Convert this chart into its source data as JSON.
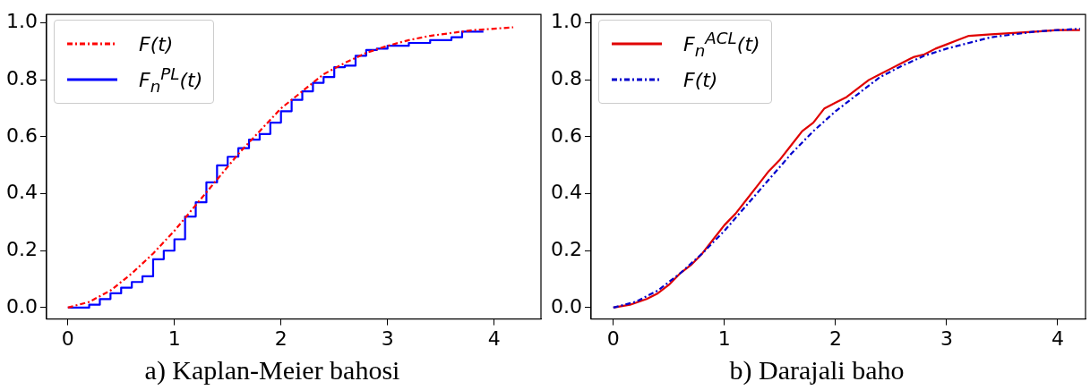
{
  "chart_data": [
    {
      "type": "line",
      "title": "a) Kaplan-Meier bahosi",
      "xlim": [
        -0.2,
        4.44
      ],
      "ylim": [
        -0.04,
        1.03
      ],
      "xticks": [
        0,
        1,
        2,
        3,
        4
      ],
      "yticks": [
        {
          "value": 0,
          "label": "0.0"
        },
        {
          "value": 0.2,
          "label": "0.2"
        },
        {
          "value": 0.4,
          "label": "0.4"
        },
        {
          "value": 0.6,
          "label": "0.6"
        },
        {
          "value": 0.8,
          "label": "0.8"
        },
        {
          "value": 1,
          "label": "1.0"
        }
      ],
      "grid": false,
      "legend": "top left",
      "marker": "none",
      "series": [
        {
          "name": "F(t)",
          "color": "#ff0000",
          "line_style": "dashed",
          "x": [
            0,
            0.2,
            0.4,
            0.6,
            0.8,
            1.0,
            1.2,
            1.4,
            1.6,
            1.8,
            2.0,
            2.2,
            2.4,
            2.6,
            2.8,
            3.0,
            3.2,
            3.4,
            3.6,
            3.8,
            4.0,
            4.18
          ],
          "values": [
            0,
            0.02,
            0.06,
            0.12,
            0.19,
            0.27,
            0.36,
            0.45,
            0.54,
            0.62,
            0.7,
            0.76,
            0.82,
            0.86,
            0.895,
            0.92,
            0.94,
            0.955,
            0.965,
            0.975,
            0.98,
            0.985
          ]
        },
        {
          "name": "F$_{n}$$^{PL}$(t)",
          "type": "step",
          "color": "#0000ff",
          "line_style": "solid",
          "x": [
            0,
            0.1,
            0.2,
            0.3,
            0.4,
            0.5,
            0.6,
            0.7,
            0.8,
            0.9,
            1.0,
            1.1,
            1.2,
            1.3,
            1.4,
            1.5,
            1.6,
            1.7,
            1.8,
            1.9,
            2.0,
            2.1,
            2.2,
            2.3,
            2.4,
            2.5,
            2.6,
            2.7,
            2.8,
            2.9,
            3.0,
            3.2,
            3.4,
            3.6,
            3.7,
            3.9
          ],
          "values": [
            0,
            0,
            0.01,
            0.03,
            0.05,
            0.07,
            0.09,
            0.11,
            0.17,
            0.2,
            0.24,
            0.32,
            0.37,
            0.44,
            0.5,
            0.53,
            0.56,
            0.59,
            0.61,
            0.65,
            0.69,
            0.73,
            0.76,
            0.79,
            0.81,
            0.845,
            0.85,
            0.885,
            0.905,
            0.91,
            0.92,
            0.93,
            0.94,
            0.95,
            0.97,
            0.97
          ]
        }
      ]
    },
    {
      "type": "line",
      "title": "b) Darajali baho",
      "xlim": [
        -0.2,
        4.25
      ],
      "ylim": [
        -0.04,
        1.03
      ],
      "xticks": [
        0,
        1,
        2,
        3,
        4
      ],
      "yticks": [
        {
          "value": 0,
          "label": "0.0"
        },
        {
          "value": 0.2,
          "label": "0.2"
        },
        {
          "value": 0.4,
          "label": "0.4"
        },
        {
          "value": 0.6,
          "label": "0.6"
        },
        {
          "value": 0.8,
          "label": "0.8"
        },
        {
          "value": 1,
          "label": "1.0"
        }
      ],
      "grid": false,
      "legend": "top left",
      "marker": "none",
      "series": [
        {
          "name": "F$_{n}$$^{ACL}$(t)",
          "color": "#e00000",
          "line_style": "solid",
          "x": [
            0,
            0.15,
            0.3,
            0.4,
            0.5,
            0.6,
            0.7,
            0.8,
            0.9,
            1.0,
            1.1,
            1.2,
            1.3,
            1.4,
            1.5,
            1.6,
            1.7,
            1.8,
            1.9,
            2.0,
            2.1,
            2.2,
            2.3,
            2.4,
            2.5,
            2.6,
            2.7,
            2.8,
            2.9,
            3.0,
            3.1,
            3.2,
            3.4,
            3.6,
            3.8,
            4.0,
            4.2
          ],
          "values": [
            0,
            0.01,
            0.03,
            0.05,
            0.08,
            0.12,
            0.15,
            0.19,
            0.24,
            0.29,
            0.33,
            0.38,
            0.43,
            0.48,
            0.52,
            0.57,
            0.62,
            0.65,
            0.7,
            0.72,
            0.74,
            0.77,
            0.8,
            0.82,
            0.84,
            0.86,
            0.88,
            0.89,
            0.91,
            0.925,
            0.94,
            0.955,
            0.96,
            0.965,
            0.97,
            0.975,
            0.975
          ]
        },
        {
          "name": "F(t)",
          "color": "#0000cc",
          "line_style": "dashed",
          "x": [
            0,
            0.2,
            0.4,
            0.6,
            0.8,
            1.0,
            1.2,
            1.4,
            1.6,
            1.8,
            2.0,
            2.2,
            2.4,
            2.6,
            2.8,
            3.0,
            3.2,
            3.4,
            3.6,
            3.8,
            4.0,
            4.2
          ],
          "values": [
            0,
            0.02,
            0.06,
            0.12,
            0.19,
            0.27,
            0.36,
            0.45,
            0.54,
            0.62,
            0.69,
            0.75,
            0.81,
            0.85,
            0.885,
            0.91,
            0.93,
            0.95,
            0.96,
            0.97,
            0.975,
            0.98
          ]
        }
      ]
    }
  ]
}
